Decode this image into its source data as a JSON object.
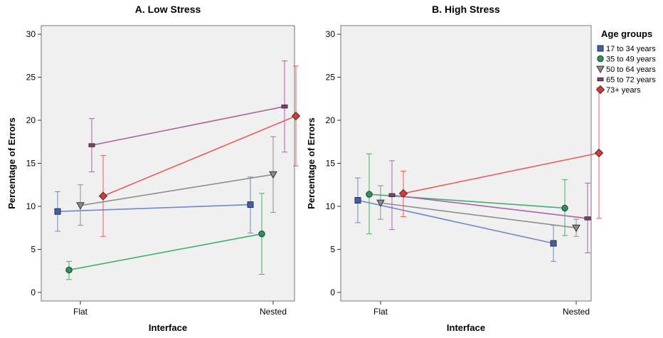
{
  "legend": {
    "title": "Age groups",
    "entries": [
      {
        "label": "17 to 34 years",
        "marker": "square",
        "fill": "#3f5fa8",
        "line": "#7088cc"
      },
      {
        "label": "35 to 49 years",
        "marker": "circle",
        "fill": "#1e9a55",
        "line": "#40b070"
      },
      {
        "label": "50 to 64 years",
        "marker": "triangle-down",
        "fill": "#8c8c8c",
        "line": "#8e8e8e"
      },
      {
        "label": "65 to 72 years",
        "marker": "rect-small",
        "fill": "#8b3a7e",
        "line": "#b060a8"
      },
      {
        "label": "73+ years",
        "marker": "diamond",
        "fill": "#e03535",
        "line": "#ef5a5a"
      }
    ]
  },
  "chart_data": [
    {
      "type": "line",
      "title": "A. Low Stress",
      "xlabel": "Interface",
      "ylabel": "Percentage of Errors",
      "categories": [
        "Flat",
        "Nested"
      ],
      "ylim": [
        -1,
        31
      ],
      "yticks": [
        0,
        5,
        10,
        15,
        20,
        25,
        30
      ],
      "grid": false,
      "series": [
        {
          "name": "17 to 34 years",
          "values": [
            9.4,
            10.2
          ],
          "ci_low": [
            7.1,
            6.9
          ],
          "ci_high": [
            11.7,
            13.4
          ]
        },
        {
          "name": "35 to 49 years",
          "values": [
            2.6,
            6.8
          ],
          "ci_low": [
            1.5,
            2.1
          ],
          "ci_high": [
            3.6,
            11.5
          ]
        },
        {
          "name": "50 to 64 years",
          "values": [
            10.1,
            13.7
          ],
          "ci_low": [
            7.8,
            9.3
          ],
          "ci_high": [
            12.5,
            18.1
          ]
        },
        {
          "name": "65 to 72 years",
          "values": [
            17.1,
            21.6
          ],
          "ci_low": [
            14.0,
            16.3
          ],
          "ci_high": [
            20.2,
            26.9
          ]
        },
        {
          "name": "73+ years",
          "values": [
            11.2,
            20.5
          ],
          "ci_low": [
            6.5,
            14.7
          ],
          "ci_high": [
            15.9,
            26.3
          ]
        }
      ]
    },
    {
      "type": "line",
      "title": "B. High Stress",
      "xlabel": "Interface",
      "ylabel": "Percentage of Errors",
      "categories": [
        "Flat",
        "Nested"
      ],
      "ylim": [
        -1,
        31
      ],
      "yticks": [
        0,
        5,
        10,
        15,
        20,
        25,
        30
      ],
      "grid": false,
      "series": [
        {
          "name": "17 to 34 years",
          "values": [
            10.7,
            5.7
          ],
          "ci_low": [
            8.1,
            3.6
          ],
          "ci_high": [
            13.3,
            7.8
          ]
        },
        {
          "name": "35 to 49 years",
          "values": [
            11.4,
            9.8
          ],
          "ci_low": [
            6.8,
            6.6
          ],
          "ci_high": [
            16.1,
            13.1
          ]
        },
        {
          "name": "50 to 64 years",
          "values": [
            10.4,
            7.5
          ],
          "ci_low": [
            8.5,
            6.5
          ],
          "ci_high": [
            12.4,
            8.5
          ]
        },
        {
          "name": "65 to 72 years",
          "values": [
            11.3,
            8.6
          ],
          "ci_low": [
            7.3,
            4.6
          ],
          "ci_high": [
            15.3,
            12.7
          ]
        },
        {
          "name": "73+ years",
          "values": [
            11.5,
            16.2
          ],
          "ci_low": [
            8.8,
            8.6
          ],
          "ci_high": [
            14.1,
            23.8
          ]
        }
      ]
    }
  ]
}
